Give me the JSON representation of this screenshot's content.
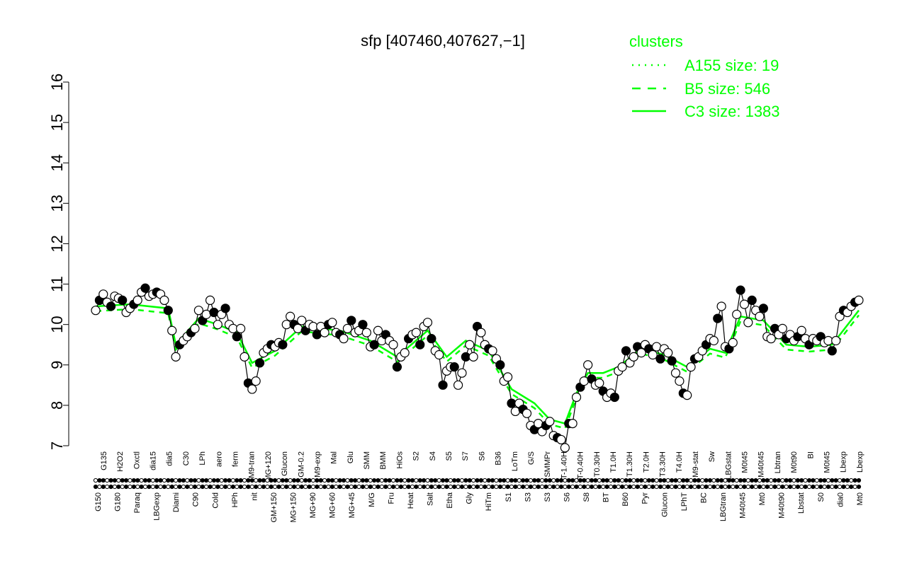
{
  "chart_data": {
    "type": "line",
    "title": "sfp [407460,407627,−1]",
    "xlabel": "",
    "ylabel": "",
    "ylim": [
      7,
      16
    ],
    "yticks": [
      7,
      8,
      9,
      10,
      11,
      12,
      13,
      14,
      15,
      16
    ],
    "grid": false,
    "legend": {
      "title": "clusters",
      "placement": "top-right",
      "color": "#00ff00",
      "entries": [
        {
          "label": "A155 size: 19",
          "style": "dotted"
        },
        {
          "label": "B5 size: 546",
          "style": "dashed"
        },
        {
          "label": "C3 size: 1383",
          "style": "solid"
        }
      ]
    },
    "tick_labels_top": [
      "G135",
      "H2O2",
      "Oxctl",
      "dia15",
      "dia5",
      "C30",
      "LPh",
      "aero",
      "ferm",
      "M9-tran",
      "MG+120",
      "Glucon",
      "GM-0.2",
      "M9-exp",
      "Mal",
      "Glu",
      "SMM",
      "BMM",
      "HiOs",
      "S2",
      "S4",
      "S5",
      "S7",
      "S6",
      "B36",
      "LoTm",
      "G/S",
      "SMMPr",
      "T-1.40H",
      "T-0.40H",
      "T0.30H",
      "T1.0H",
      "T1.30H",
      "T2.0H",
      "T3.30H",
      "T4.0H",
      "M9-stat",
      "Sw",
      "LBGstat",
      "M0t45",
      "M40t45",
      "Lbtran",
      "M0t90",
      "BI",
      "M0t45",
      "Lbexp",
      "Lbexp"
    ],
    "tick_labels_bottom": [
      "G150",
      "G180",
      "Paraq",
      "LBGexp",
      "Diami",
      "C90",
      "Cold",
      "HPh",
      "nit",
      "GM+150",
      "MG+150",
      "MG+90",
      "MG+60",
      "MG+45",
      "M/G",
      "Fru",
      "Heat",
      "Salt",
      "Etha",
      "Gly",
      "HiTm",
      "S1",
      "S3",
      "S3",
      "S6",
      "S8",
      "BT",
      "B60",
      "Pyr",
      "Glucon",
      "LPhT",
      "BC",
      "LBGtran",
      "M40t45",
      "Mt0",
      "M40t90",
      "Lbstat",
      "S0",
      "dia0",
      "Mt0"
    ],
    "series": [
      {
        "name": "",
        "color": "#000000",
        "points": [
          [
            1,
            10.35
          ],
          [
            2,
            10.6
          ],
          [
            3,
            10.75
          ],
          [
            4,
            10.55
          ],
          [
            5,
            10.45
          ],
          [
            6,
            10.7
          ],
          [
            7,
            10.65
          ],
          [
            8,
            10.6
          ],
          [
            9,
            10.3
          ],
          [
            10,
            10.4
          ],
          [
            11,
            10.5
          ],
          [
            12,
            10.6
          ],
          [
            13,
            10.8
          ],
          [
            14,
            10.9
          ],
          [
            15,
            10.7
          ],
          [
            16,
            10.75
          ],
          [
            17,
            10.8
          ],
          [
            18,
            10.75
          ],
          [
            19,
            10.6
          ],
          [
            20,
            10.35
          ],
          [
            21,
            9.85
          ],
          [
            22,
            9.2
          ],
          [
            23,
            9.5
          ],
          [
            24,
            9.6
          ],
          [
            25,
            9.7
          ],
          [
            26,
            9.8
          ],
          [
            27,
            9.9
          ],
          [
            28,
            10.35
          ],
          [
            29,
            10.1
          ],
          [
            30,
            10.25
          ],
          [
            31,
            10.6
          ],
          [
            32,
            10.3
          ],
          [
            33,
            10.0
          ],
          [
            34,
            10.25
          ],
          [
            35,
            10.4
          ],
          [
            36,
            10.0
          ],
          [
            37,
            9.9
          ],
          [
            38,
            9.7
          ],
          [
            39,
            9.9
          ],
          [
            40,
            9.2
          ],
          [
            41,
            8.55
          ],
          [
            42,
            8.4
          ],
          [
            43,
            8.6
          ],
          [
            44,
            9.05
          ],
          [
            45,
            9.3
          ],
          [
            46,
            9.4
          ],
          [
            47,
            9.5
          ],
          [
            48,
            9.45
          ],
          [
            49,
            9.55
          ],
          [
            50,
            9.5
          ],
          [
            51,
            10.0
          ],
          [
            52,
            10.2
          ],
          [
            53,
            10.0
          ],
          [
            54,
            9.9
          ],
          [
            55,
            10.1
          ],
          [
            56,
            9.85
          ],
          [
            57,
            10.0
          ],
          [
            58,
            9.95
          ],
          [
            59,
            9.75
          ],
          [
            60,
            9.95
          ],
          [
            61,
            9.8
          ],
          [
            62,
            10.0
          ],
          [
            63,
            10.05
          ],
          [
            64,
            9.8
          ],
          [
            65,
            9.75
          ],
          [
            66,
            9.65
          ],
          [
            67,
            9.9
          ],
          [
            68,
            10.1
          ],
          [
            69,
            9.8
          ],
          [
            70,
            9.85
          ],
          [
            71,
            10.0
          ],
          [
            72,
            9.8
          ],
          [
            73,
            9.45
          ],
          [
            74,
            9.5
          ],
          [
            75,
            9.85
          ],
          [
            76,
            9.6
          ],
          [
            77,
            9.75
          ],
          [
            78,
            9.6
          ],
          [
            79,
            9.5
          ],
          [
            80,
            8.95
          ],
          [
            81,
            9.2
          ],
          [
            82,
            9.3
          ],
          [
            83,
            9.65
          ],
          [
            84,
            9.75
          ],
          [
            85,
            9.8
          ],
          [
            86,
            9.5
          ],
          [
            87,
            9.95
          ],
          [
            88,
            10.05
          ],
          [
            89,
            9.65
          ],
          [
            90,
            9.35
          ],
          [
            91,
            9.25
          ],
          [
            92,
            8.5
          ],
          [
            93,
            8.85
          ],
          [
            94,
            8.95
          ],
          [
            95,
            8.95
          ],
          [
            96,
            8.5
          ],
          [
            97,
            8.8
          ],
          [
            98,
            9.2
          ],
          [
            99,
            9.5
          ],
          [
            100,
            9.2
          ],
          [
            101,
            9.95
          ],
          [
            102,
            9.8
          ],
          [
            103,
            9.5
          ],
          [
            104,
            9.4
          ],
          [
            105,
            9.35
          ],
          [
            106,
            9.15
          ],
          [
            107,
            9.0
          ],
          [
            108,
            8.6
          ],
          [
            109,
            8.7
          ],
          [
            110,
            8.05
          ],
          [
            111,
            7.85
          ],
          [
            112,
            8.05
          ],
          [
            113,
            7.9
          ],
          [
            114,
            7.8
          ],
          [
            115,
            7.5
          ],
          [
            116,
            7.4
          ],
          [
            117,
            7.55
          ],
          [
            118,
            7.35
          ],
          [
            119,
            7.5
          ],
          [
            120,
            7.6
          ],
          [
            121,
            7.25
          ],
          [
            122,
            7.2
          ],
          [
            123,
            7.15
          ],
          [
            124,
            6.95
          ],
          [
            125,
            7.55
          ],
          [
            126,
            7.55
          ],
          [
            127,
            8.2
          ],
          [
            128,
            8.45
          ],
          [
            129,
            8.6
          ],
          [
            130,
            9.0
          ],
          [
            131,
            8.65
          ],
          [
            132,
            8.5
          ],
          [
            133,
            8.55
          ],
          [
            134,
            8.35
          ],
          [
            135,
            8.2
          ],
          [
            136,
            8.3
          ],
          [
            137,
            8.2
          ],
          [
            138,
            8.85
          ],
          [
            139,
            8.95
          ],
          [
            140,
            9.35
          ],
          [
            141,
            9.05
          ],
          [
            142,
            9.2
          ],
          [
            143,
            9.45
          ],
          [
            144,
            9.3
          ],
          [
            145,
            9.5
          ],
          [
            146,
            9.4
          ],
          [
            147,
            9.25
          ],
          [
            148,
            9.45
          ],
          [
            149,
            9.15
          ],
          [
            150,
            9.4
          ],
          [
            151,
            9.3
          ],
          [
            152,
            9.1
          ],
          [
            153,
            8.8
          ],
          [
            154,
            8.6
          ],
          [
            155,
            8.3
          ],
          [
            156,
            8.25
          ],
          [
            157,
            8.95
          ],
          [
            158,
            9.15
          ],
          [
            159,
            9.2
          ],
          [
            160,
            9.35
          ],
          [
            161,
            9.5
          ],
          [
            162,
            9.65
          ],
          [
            163,
            9.6
          ],
          [
            164,
            10.15
          ],
          [
            165,
            10.45
          ],
          [
            166,
            9.45
          ],
          [
            167,
            9.4
          ],
          [
            168,
            9.55
          ],
          [
            169,
            10.25
          ],
          [
            170,
            10.85
          ],
          [
            171,
            10.5
          ],
          [
            172,
            10.05
          ],
          [
            173,
            10.6
          ],
          [
            174,
            10.35
          ],
          [
            175,
            10.2
          ],
          [
            176,
            10.4
          ],
          [
            177,
            9.7
          ],
          [
            178,
            9.65
          ],
          [
            179,
            9.9
          ],
          [
            180,
            9.75
          ],
          [
            181,
            9.9
          ],
          [
            182,
            9.65
          ],
          [
            183,
            9.75
          ],
          [
            184,
            9.6
          ],
          [
            185,
            9.7
          ],
          [
            186,
            9.85
          ],
          [
            187,
            9.65
          ],
          [
            188,
            9.5
          ],
          [
            189,
            9.65
          ],
          [
            190,
            9.6
          ],
          [
            191,
            9.7
          ],
          [
            192,
            9.55
          ],
          [
            193,
            9.6
          ],
          [
            194,
            9.35
          ],
          [
            195,
            9.6
          ],
          [
            196,
            10.2
          ],
          [
            197,
            10.35
          ],
          [
            198,
            10.3
          ],
          [
            199,
            10.45
          ],
          [
            200,
            10.55
          ],
          [
            201,
            10.6
          ]
        ]
      },
      {
        "name": "",
        "color": "#00ff00",
        "points": [
          [
            1,
            10.45
          ],
          [
            10,
            10.5
          ],
          [
            20,
            10.4
          ],
          [
            22,
            9.5
          ],
          [
            28,
            10.15
          ],
          [
            33,
            10.0
          ],
          [
            38,
            9.8
          ],
          [
            42,
            9.05
          ],
          [
            48,
            9.35
          ],
          [
            55,
            9.95
          ],
          [
            65,
            9.85
          ],
          [
            73,
            9.6
          ],
          [
            80,
            9.2
          ],
          [
            88,
            9.85
          ],
          [
            93,
            9.2
          ],
          [
            98,
            9.6
          ],
          [
            104,
            9.35
          ],
          [
            110,
            8.4
          ],
          [
            116,
            8.05
          ],
          [
            120,
            7.65
          ],
          [
            124,
            7.55
          ],
          [
            127,
            8.3
          ],
          [
            130,
            8.8
          ],
          [
            134,
            8.8
          ],
          [
            138,
            8.95
          ],
          [
            144,
            9.4
          ],
          [
            150,
            9.25
          ],
          [
            156,
            8.95
          ],
          [
            162,
            9.4
          ],
          [
            166,
            9.3
          ],
          [
            170,
            10.2
          ],
          [
            176,
            10.1
          ],
          [
            182,
            9.5
          ],
          [
            188,
            9.45
          ],
          [
            194,
            9.5
          ],
          [
            201,
            10.35
          ]
        ]
      }
    ]
  }
}
